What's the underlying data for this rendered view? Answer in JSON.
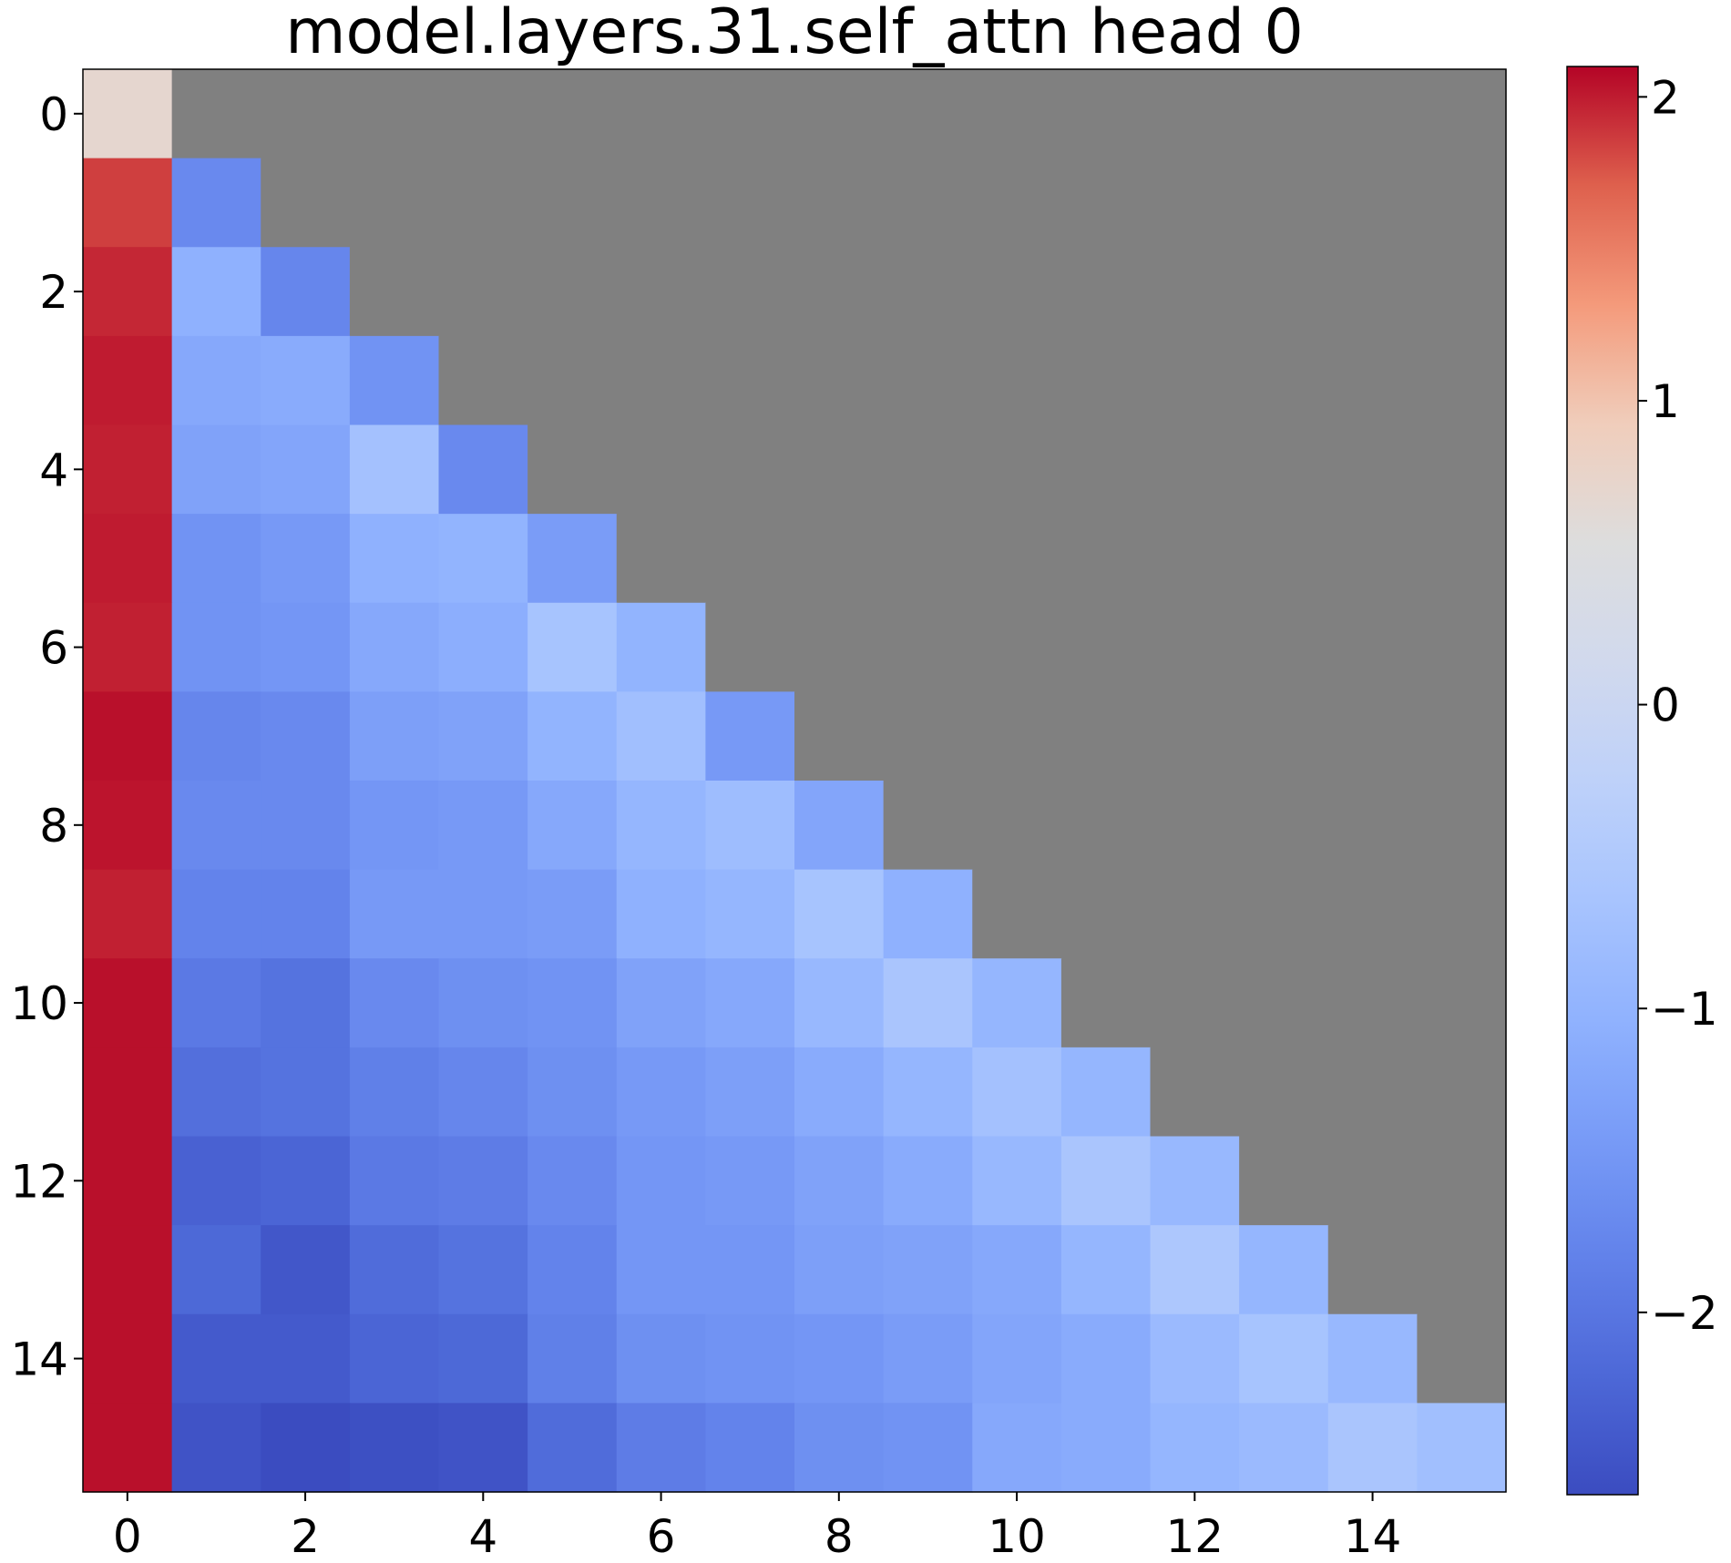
{
  "chart_data": {
    "type": "heatmap",
    "title": "model.layers.31.self_attn head 0",
    "xlabel": "",
    "ylabel": "",
    "rows": 16,
    "cols": 16,
    "x_ticks": [
      0,
      2,
      4,
      6,
      8,
      10,
      12,
      14
    ],
    "y_ticks": [
      0,
      2,
      4,
      6,
      8,
      10,
      12,
      14
    ],
    "x_tick_labels": [
      "0",
      "2",
      "4",
      "6",
      "8",
      "10",
      "12",
      "14"
    ],
    "y_tick_labels": [
      "0",
      "2",
      "4",
      "6",
      "8",
      "10",
      "12",
      "14"
    ],
    "colormap": "coolwarm",
    "masked_color": "#808080",
    "mask": "upper-triangle (column > row) not shown",
    "colorbar": {
      "vmin": -2.6,
      "vmax": 2.1,
      "ticks": [
        2,
        1,
        0,
        -1,
        -2
      ],
      "tick_labels": [
        "2",
        "1",
        "0",
        "−1",
        "−2"
      ]
    },
    "values": [
      [
        0.7
      ],
      [
        1.85,
        -1.7
      ],
      [
        1.95,
        -1.05,
        -1.75
      ],
      [
        2.0,
        -1.2,
        -1.15,
        -1.55
      ],
      [
        1.98,
        -1.3,
        -1.25,
        -0.7,
        -1.7
      ],
      [
        2.0,
        -1.55,
        -1.45,
        -1.05,
        -1.0,
        -1.4
      ],
      [
        1.98,
        -1.55,
        -1.5,
        -1.2,
        -1.1,
        -0.65,
        -1.0
      ],
      [
        2.05,
        -1.75,
        -1.7,
        -1.35,
        -1.3,
        -1.0,
        -0.75,
        -1.45
      ],
      [
        2.03,
        -1.7,
        -1.7,
        -1.5,
        -1.45,
        -1.2,
        -0.95,
        -0.8,
        -1.25
      ],
      [
        1.98,
        -1.8,
        -1.8,
        -1.45,
        -1.45,
        -1.4,
        -1.05,
        -0.95,
        -0.65,
        -1.05
      ],
      [
        2.05,
        -1.95,
        -2.05,
        -1.7,
        -1.6,
        -1.55,
        -1.3,
        -1.2,
        -0.9,
        -0.6,
        -0.95
      ],
      [
        2.05,
        -2.1,
        -2.05,
        -1.85,
        -1.75,
        -1.6,
        -1.45,
        -1.35,
        -1.15,
        -0.95,
        -0.7,
        -0.95
      ],
      [
        2.05,
        -2.3,
        -2.25,
        -1.95,
        -1.9,
        -1.7,
        -1.5,
        -1.45,
        -1.3,
        -1.15,
        -0.9,
        -0.6,
        -0.9
      ],
      [
        2.05,
        -2.2,
        -2.45,
        -2.15,
        -2.05,
        -1.8,
        -1.5,
        -1.5,
        -1.35,
        -1.3,
        -1.2,
        -0.95,
        -0.55,
        -0.95
      ],
      [
        2.05,
        -2.4,
        -2.4,
        -2.25,
        -2.2,
        -1.85,
        -1.6,
        -1.55,
        -1.5,
        -1.4,
        -1.25,
        -1.15,
        -0.85,
        -0.65,
        -0.9
      ],
      [
        2.05,
        -2.5,
        -2.6,
        -2.55,
        -2.5,
        -2.15,
        -1.9,
        -1.8,
        -1.6,
        -1.55,
        -1.2,
        -1.15,
        -0.95,
        -0.85,
        -0.6,
        -0.75
      ]
    ]
  }
}
